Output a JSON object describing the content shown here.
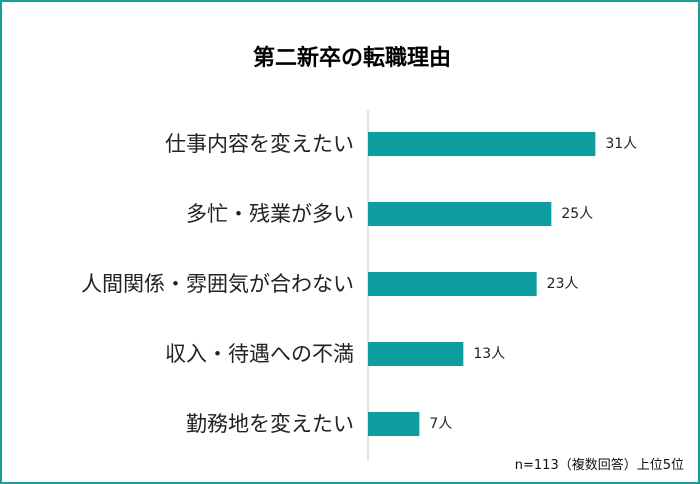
{
  "chart_data": {
    "type": "bar",
    "orientation": "horizontal",
    "title": "第二新卒の転職理由",
    "categories": [
      "仕事内容を変えたい",
      "多忙・残業が多い",
      "人間関係・雰囲気が合わない",
      "収入・待遇への不満",
      "勤務地を変えたい"
    ],
    "values": [
      31,
      25,
      23,
      13,
      7
    ],
    "value_labels": [
      "31人",
      "25人",
      "23人",
      "13人",
      "7人"
    ],
    "bar_color": "#0d9d9f",
    "xlim": [
      0,
      42
    ],
    "grid": false,
    "note": "n=113（複数回答）上位5位"
  }
}
